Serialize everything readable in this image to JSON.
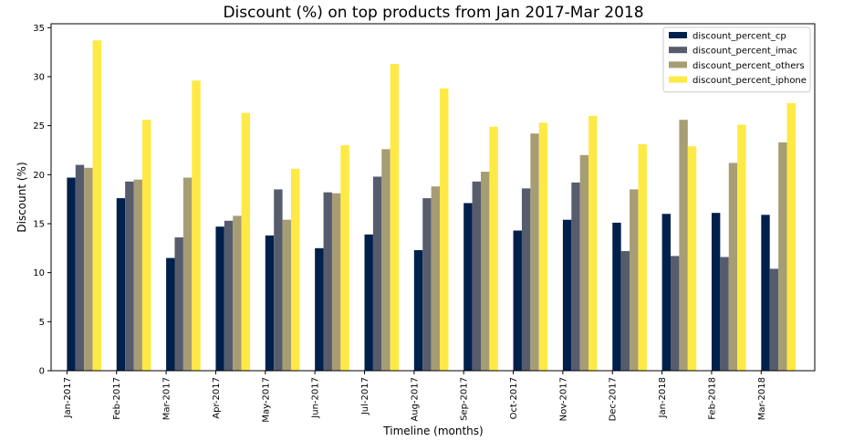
{
  "chart_data": {
    "type": "bar",
    "title": "Discount (%) on top products from Jan 2017-Mar 2018",
    "xlabel": "Timeline (months)",
    "ylabel": "Discount (%)",
    "ylim": [
      0,
      35.4
    ],
    "yticks": [
      0,
      5,
      10,
      15,
      20,
      25,
      30,
      35
    ],
    "grid": false,
    "legend_position": "top-right",
    "categories": [
      "Jan-2017",
      "Feb-2017",
      "Mar-2017",
      "Apr-2017",
      "May-2017",
      "Jun-2017",
      "Jul-2017",
      "Aug-2017",
      "Sep-2017",
      "Oct-2017",
      "Nov-2017",
      "Dec-2017",
      "Jan-2018",
      "Feb-2018",
      "Mar-2018"
    ],
    "series": [
      {
        "name": "discount_percent_cp",
        "color": "#00204c",
        "values": [
          19.7,
          17.6,
          11.5,
          14.7,
          13.8,
          12.5,
          13.9,
          12.3,
          17.1,
          14.3,
          15.4,
          15.1,
          16.0,
          16.1,
          15.9
        ]
      },
      {
        "name": "discount_percent_imac",
        "color": "#575c6d",
        "values": [
          21.0,
          19.3,
          13.6,
          15.3,
          18.5,
          18.2,
          19.8,
          17.6,
          19.3,
          18.6,
          19.2,
          12.2,
          11.7,
          11.6,
          10.4
        ]
      },
      {
        "name": "discount_percent_others",
        "color": "#a69d75",
        "values": [
          20.7,
          19.5,
          19.7,
          15.8,
          15.4,
          18.1,
          22.6,
          18.8,
          20.3,
          24.2,
          22.0,
          18.5,
          25.6,
          21.2,
          23.3
        ]
      },
      {
        "name": "discount_percent_iphone",
        "color": "#ffe945",
        "values": [
          33.7,
          25.6,
          29.6,
          26.3,
          20.6,
          23.0,
          31.3,
          28.8,
          24.9,
          25.3,
          26.0,
          23.1,
          22.9,
          25.1,
          27.3
        ]
      }
    ]
  }
}
